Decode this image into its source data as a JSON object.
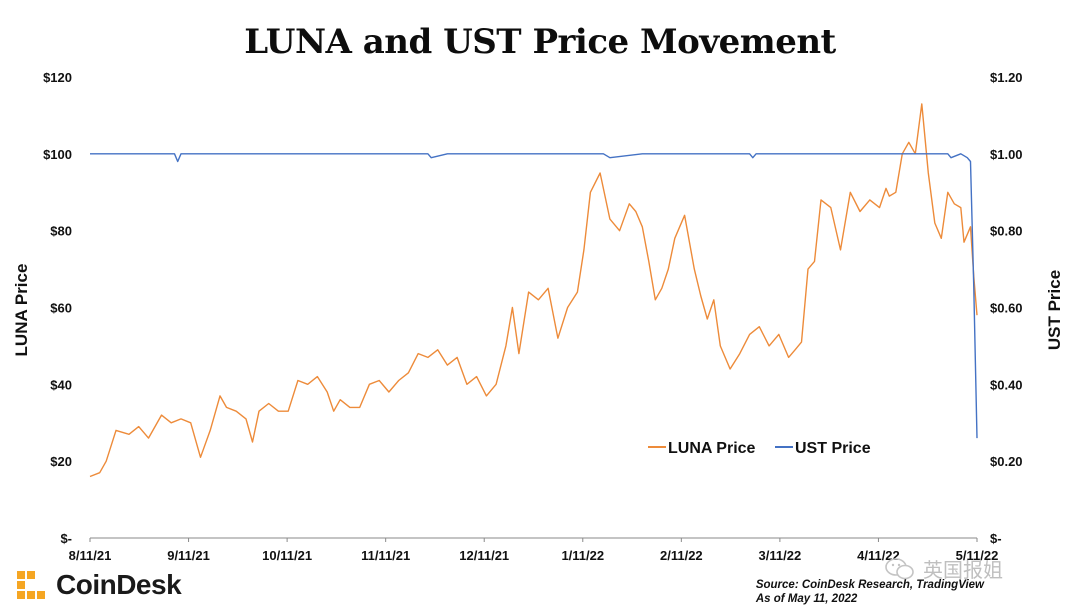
{
  "title": "LUNA and UST Price Movement",
  "brand": {
    "name": "CoinDesk",
    "color": "#f5a623"
  },
  "source_line1": "Source: CoinDesk Research, TradingView",
  "source_line2": "As of May 11, 2022",
  "watermark": "英国报姐",
  "chart_data": {
    "type": "line",
    "title": "LUNA and UST Price Movement",
    "xlabel": "",
    "ylabel_left": "LUNA Price",
    "ylabel_right": "UST Price",
    "ylim_left": [
      0,
      120
    ],
    "ylim_right": [
      0,
      1.2
    ],
    "y_ticks_left": [
      "$-",
      "$20",
      "$40",
      "$60",
      "$80",
      "$100",
      "$120"
    ],
    "y_ticks_right": [
      "$-",
      "$0.20",
      "$0.40",
      "$0.60",
      "$0.80",
      "$1.00",
      "$1.20"
    ],
    "x_ticks": [
      "8/11/21",
      "9/11/21",
      "10/11/21",
      "11/11/21",
      "12/11/21",
      "1/11/22",
      "2/11/22",
      "3/11/22",
      "4/11/22",
      "5/11/22"
    ],
    "x_range_days": [
      0,
      273
    ],
    "grid": false,
    "legend_position": "center-right",
    "series": [
      {
        "name": "LUNA Price",
        "axis": "left",
        "color": "#ed8b3a",
        "x_days": [
          0,
          3,
          5,
          8,
          12,
          15,
          18,
          22,
          25,
          28,
          31,
          34,
          37,
          40,
          42,
          45,
          48,
          50,
          52,
          55,
          58,
          61,
          64,
          67,
          70,
          73,
          75,
          77,
          80,
          83,
          86,
          89,
          92,
          95,
          98,
          101,
          104,
          107,
          110,
          113,
          116,
          119,
          122,
          125,
          128,
          130,
          132,
          135,
          138,
          141,
          144,
          147,
          150,
          152,
          154,
          157,
          160,
          163,
          166,
          168,
          170,
          172,
          174,
          176,
          178,
          180,
          183,
          186,
          188,
          190,
          192,
          194,
          197,
          200,
          203,
          206,
          209,
          212,
          215,
          217,
          219,
          221,
          223,
          225,
          228,
          231,
          234,
          237,
          240,
          243,
          245,
          246,
          248,
          250,
          252,
          254,
          256,
          258,
          260,
          262,
          264,
          266,
          268,
          269,
          271,
          272,
          273
        ],
        "values": [
          16,
          17,
          20,
          28,
          27,
          29,
          26,
          32,
          30,
          31,
          30,
          21,
          28,
          37,
          34,
          33,
          31,
          25,
          33,
          35,
          33,
          33,
          41,
          40,
          42,
          38,
          33,
          36,
          34,
          34,
          40,
          41,
          38,
          41,
          43,
          48,
          47,
          49,
          45,
          47,
          40,
          42,
          37,
          40,
          50,
          60,
          48,
          64,
          62,
          65,
          52,
          60,
          64,
          75,
          90,
          95,
          83,
          80,
          87,
          85,
          81,
          72,
          62,
          65,
          70,
          78,
          84,
          70,
          63,
          57,
          62,
          50,
          44,
          48,
          53,
          55,
          50,
          53,
          47,
          49,
          51,
          70,
          72,
          88,
          86,
          75,
          90,
          85,
          88,
          86,
          91,
          89,
          90,
          100,
          103,
          100,
          113,
          95,
          82,
          78,
          90,
          87,
          86,
          77,
          81,
          68,
          58
        ]
      },
      {
        "name": "UST Price",
        "axis": "right",
        "color": "#4472c4",
        "x_days": [
          0,
          10,
          20,
          26,
          27,
          28,
          40,
          50,
          60,
          70,
          80,
          90,
          100,
          104,
          105,
          110,
          120,
          130,
          140,
          150,
          158,
          160,
          170,
          180,
          190,
          200,
          203,
          204,
          205,
          210,
          220,
          230,
          240,
          250,
          254,
          255,
          260,
          264,
          265,
          268,
          270,
          271,
          272,
          273
        ],
        "values": [
          1.0,
          1.0,
          1.0,
          1.0,
          0.98,
          1.0,
          1.0,
          1.0,
          1.0,
          1.0,
          1.0,
          1.0,
          1.0,
          1.0,
          0.99,
          1.0,
          1.0,
          1.0,
          1.0,
          1.0,
          1.0,
          0.99,
          1.0,
          1.0,
          1.0,
          1.0,
          1.0,
          0.99,
          1.0,
          1.0,
          1.0,
          1.0,
          1.0,
          1.0,
          1.0,
          1.0,
          1.0,
          1.0,
          0.99,
          1.0,
          0.99,
          0.98,
          0.65,
          0.26
        ]
      }
    ]
  }
}
